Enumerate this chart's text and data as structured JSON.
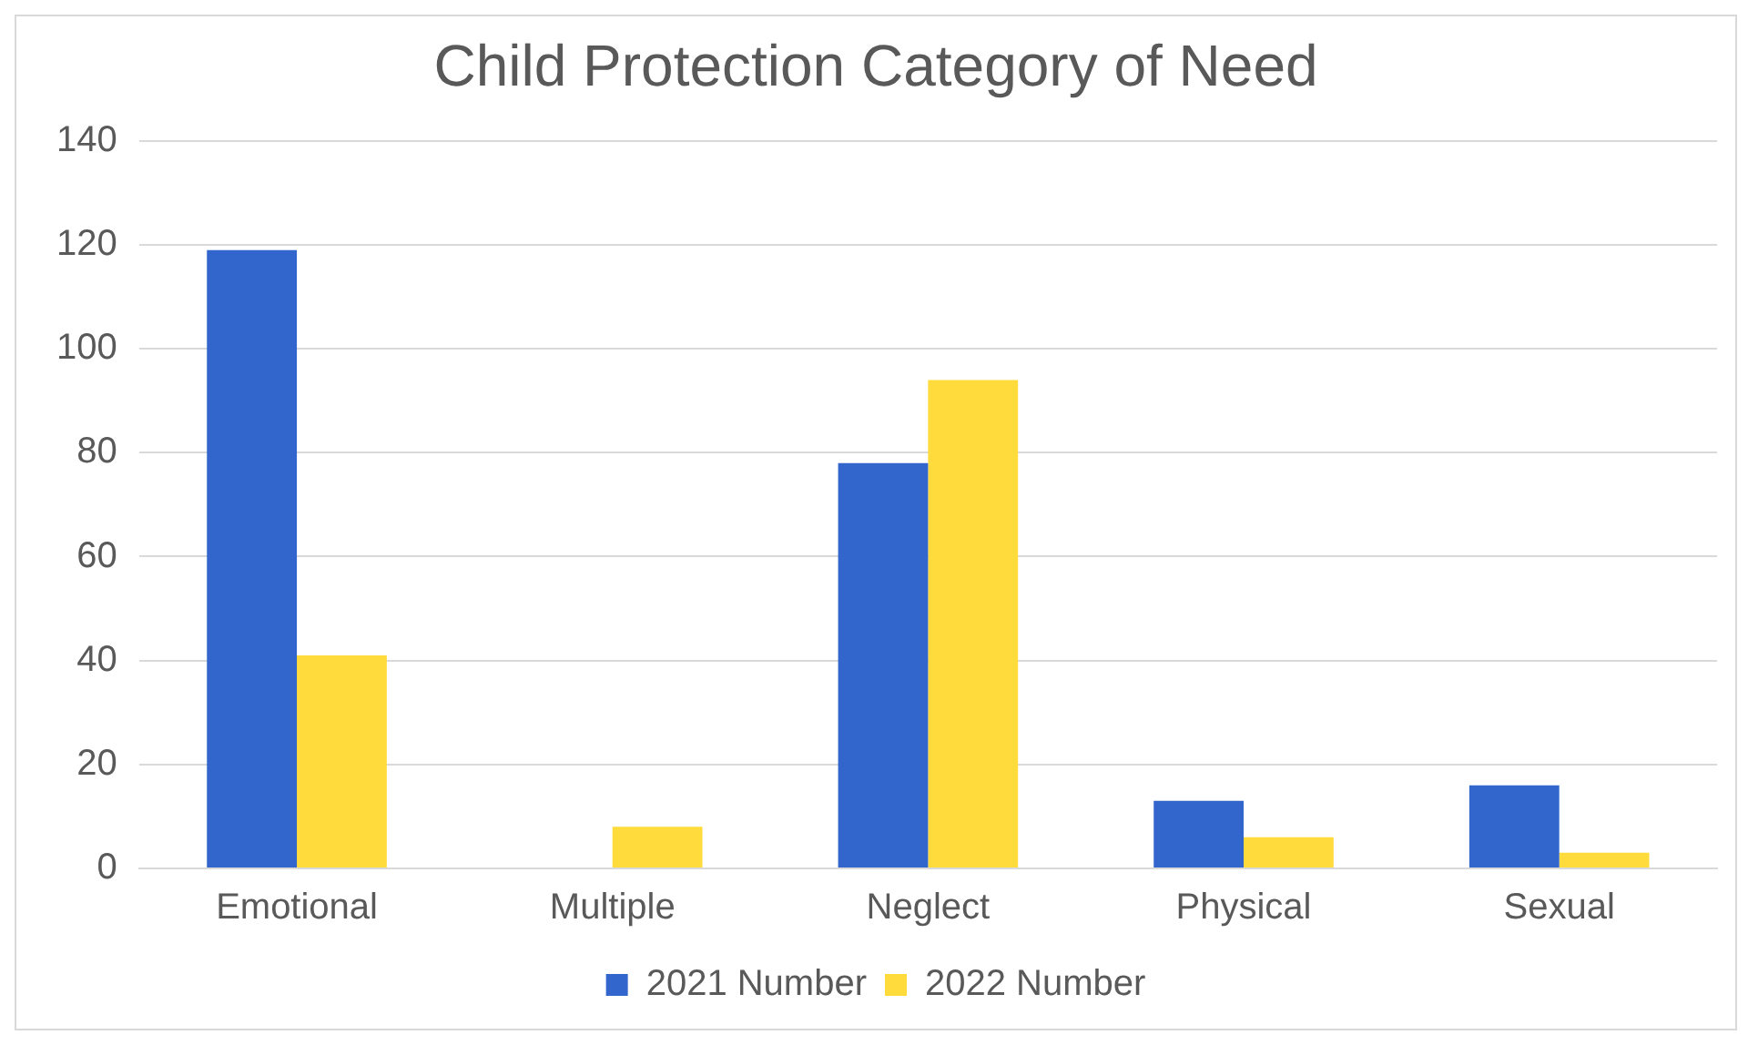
{
  "chart_data": {
    "type": "bar",
    "title": "Child Protection Category of Need",
    "categories": [
      "Emotional",
      "Multiple",
      "Neglect",
      "Physical",
      "Sexual"
    ],
    "series": [
      {
        "name": "2021 Number",
        "color": "#3366cc",
        "values": [
          119,
          0,
          78,
          13,
          16
        ]
      },
      {
        "name": "2022 Number",
        "color": "#ffdb3b",
        "values": [
          41,
          8,
          94,
          6,
          3
        ]
      }
    ],
    "ylim": [
      0,
      140
    ],
    "yticks": [
      0,
      20,
      40,
      60,
      80,
      100,
      120,
      140
    ],
    "grid": "y",
    "legend": "bottom"
  }
}
